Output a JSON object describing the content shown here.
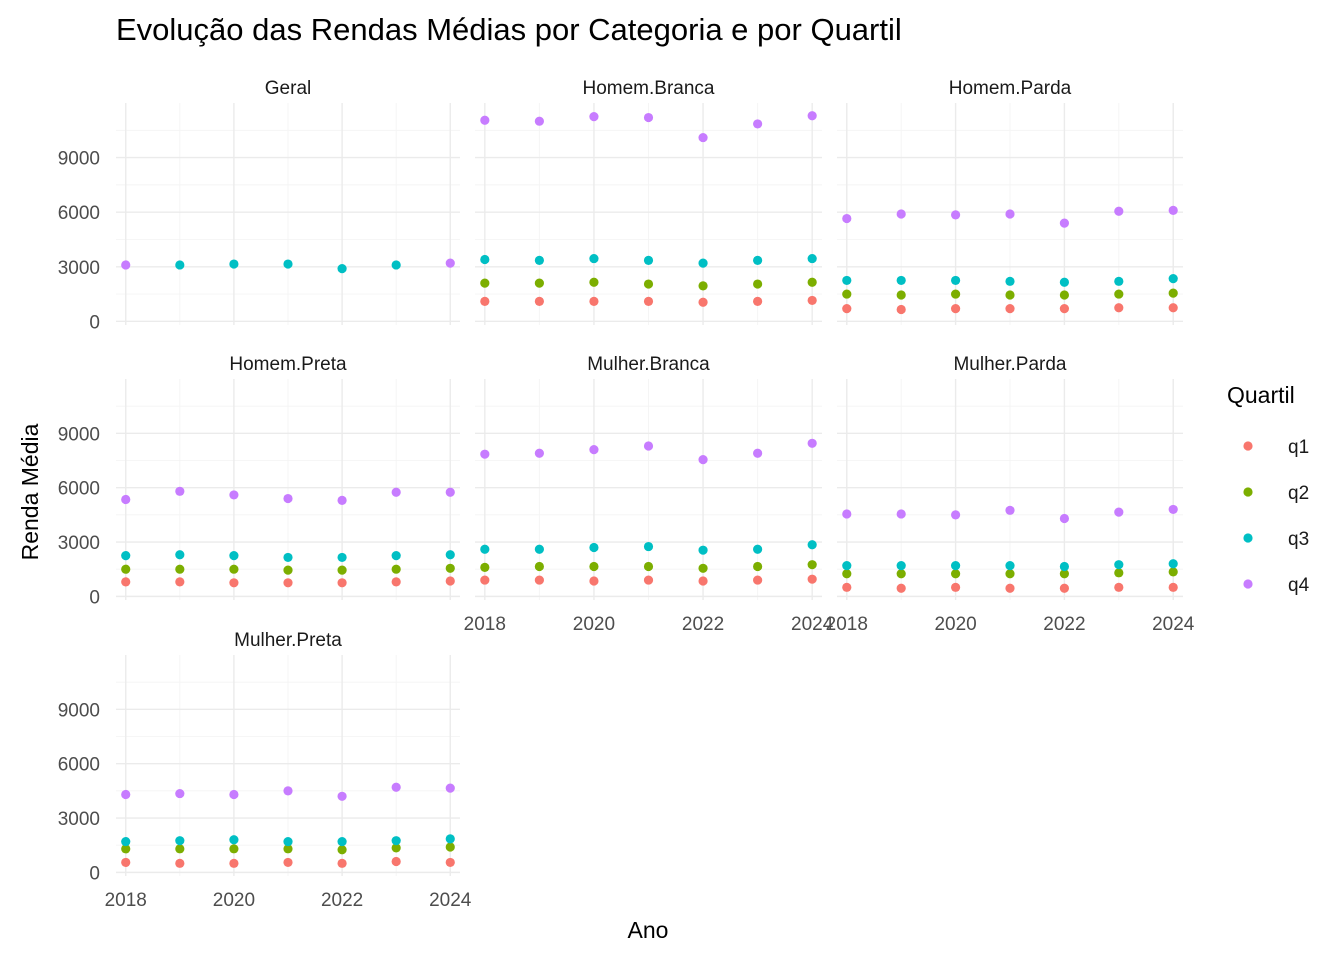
{
  "chart_data": {
    "type": "scatter",
    "title": "Evolução das Rendas Médias por Categoria e por Quartil",
    "xlabel": "Ano",
    "ylabel": "Renda Média",
    "x": [
      2018,
      2019,
      2020,
      2021,
      2022,
      2023,
      2024
    ],
    "x_ticks": [
      "2018",
      "2020",
      "2022",
      "2024"
    ],
    "x_tick_values": [
      2018,
      2020,
      2022,
      2024
    ],
    "y_ticks": [
      "0",
      "3000",
      "6000",
      "9000"
    ],
    "y_tick_values": [
      0,
      3000,
      6000,
      9000
    ],
    "ylim": [
      -200,
      12000
    ],
    "grid": true,
    "legend": {
      "title": "Quartil",
      "placement": "right",
      "entries": [
        {
          "name": "q1",
          "color": "#F8766D"
        },
        {
          "name": "q2",
          "color": "#7CAE00"
        },
        {
          "name": "q3",
          "color": "#00BFC4"
        },
        {
          "name": "q4",
          "color": "#C77CFF"
        }
      ]
    },
    "facets": [
      {
        "label": "Geral",
        "series": [
          {
            "name": "q3",
            "values": [
              null,
              3100,
              3150,
              3150,
              2900,
              3100,
              null
            ]
          },
          {
            "name": "q4",
            "values": [
              3100,
              null,
              null,
              null,
              null,
              null,
              3200
            ]
          }
        ]
      },
      {
        "label": "Homem.Branca",
        "series": [
          {
            "name": "q1",
            "values": [
              1100,
              1100,
              1100,
              1100,
              1050,
              1100,
              1150
            ]
          },
          {
            "name": "q2",
            "values": [
              2100,
              2100,
              2150,
              2050,
              1950,
              2050,
              2150
            ]
          },
          {
            "name": "q3",
            "values": [
              3400,
              3350,
              3450,
              3350,
              3200,
              3350,
              3450
            ]
          },
          {
            "name": "q4",
            "values": [
              11050,
              11000,
              11250,
              11200,
              10100,
              10850,
              11300
            ]
          }
        ]
      },
      {
        "label": "Homem.Parda",
        "series": [
          {
            "name": "q1",
            "values": [
              700,
              650,
              700,
              700,
              700,
              750,
              750
            ]
          },
          {
            "name": "q2",
            "values": [
              1500,
              1450,
              1500,
              1450,
              1450,
              1500,
              1550
            ]
          },
          {
            "name": "q3",
            "values": [
              2250,
              2250,
              2250,
              2200,
              2150,
              2200,
              2350
            ]
          },
          {
            "name": "q4",
            "values": [
              5650,
              5900,
              5850,
              5900,
              5400,
              6050,
              6100
            ]
          }
        ]
      },
      {
        "label": "Homem.Preta",
        "series": [
          {
            "name": "q1",
            "values": [
              800,
              800,
              750,
              750,
              750,
              800,
              850
            ]
          },
          {
            "name": "q2",
            "values": [
              1500,
              1500,
              1500,
              1450,
              1450,
              1500,
              1550
            ]
          },
          {
            "name": "q3",
            "values": [
              2250,
              2300,
              2250,
              2150,
              2150,
              2250,
              2300
            ]
          },
          {
            "name": "q4",
            "values": [
              5350,
              5800,
              5600,
              5400,
              5300,
              5750,
              5750
            ]
          }
        ]
      },
      {
        "label": "Mulher.Branca",
        "series": [
          {
            "name": "q1",
            "values": [
              900,
              900,
              850,
              900,
              850,
              900,
              950
            ]
          },
          {
            "name": "q2",
            "values": [
              1600,
              1650,
              1650,
              1650,
              1550,
              1650,
              1750
            ]
          },
          {
            "name": "q3",
            "values": [
              2600,
              2600,
              2700,
              2750,
              2550,
              2600,
              2850
            ]
          },
          {
            "name": "q4",
            "values": [
              7850,
              7900,
              8100,
              8300,
              7550,
              7900,
              8450
            ]
          }
        ]
      },
      {
        "label": "Mulher.Parda",
        "series": [
          {
            "name": "q1",
            "values": [
              500,
              450,
              500,
              450,
              450,
              500,
              500
            ]
          },
          {
            "name": "q2",
            "values": [
              1250,
              1250,
              1250,
              1250,
              1250,
              1300,
              1350
            ]
          },
          {
            "name": "q3",
            "values": [
              1700,
              1700,
              1700,
              1700,
              1650,
              1750,
              1800
            ]
          },
          {
            "name": "q4",
            "values": [
              4550,
              4550,
              4500,
              4750,
              4300,
              4650,
              4800
            ]
          }
        ]
      },
      {
        "label": "Mulher.Preta",
        "series": [
          {
            "name": "q1",
            "values": [
              550,
              500,
              500,
              550,
              500,
              600,
              550
            ]
          },
          {
            "name": "q2",
            "values": [
              1300,
              1300,
              1300,
              1300,
              1250,
              1350,
              1400
            ]
          },
          {
            "name": "q3",
            "values": [
              1700,
              1750,
              1800,
              1700,
              1700,
              1750,
              1850
            ]
          },
          {
            "name": "q4",
            "values": [
              4300,
              4350,
              4300,
              4500,
              4200,
              4700,
              4650
            ]
          }
        ]
      }
    ]
  }
}
